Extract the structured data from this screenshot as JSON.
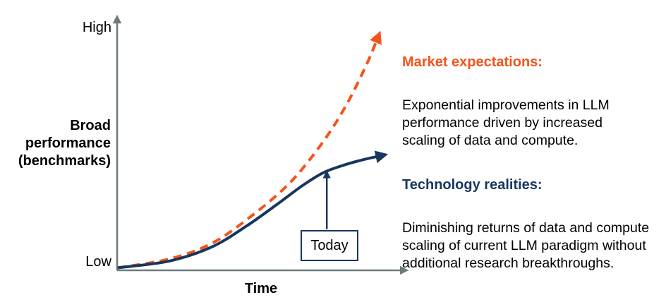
{
  "colors": {
    "market_orange": "#F4541C",
    "tech_navy": "#17375E",
    "axis_gray": "#6E7B7B",
    "text_black": "#000000"
  },
  "axes": {
    "y_high_label": "High",
    "y_low_label": "Low",
    "y_title": "Broad\nperformance\n(benchmarks)",
    "x_title": "Time"
  },
  "today": {
    "label": "Today"
  },
  "notes": {
    "market": {
      "title": "Market expectations:",
      "body": "Exponential improvements in LLM\nperformance driven by increased\nscaling of data and compute."
    },
    "tech": {
      "title": "Technology realities:",
      "body": "Diminishing returns of data and compute\nscaling of current LLM paradigm without\nadditional research breakthroughs."
    }
  },
  "chart_data": {
    "type": "line",
    "title": "",
    "xlabel": "Time",
    "ylabel": "Broad performance (benchmarks)",
    "y_tick_labels": [
      "Low",
      "High"
    ],
    "grid": false,
    "legend_position": "right-annotations",
    "axis_style": "qualitative (no numeric ticks); both axes drawn as gray arrows",
    "series": [
      {
        "name": "Market expectations",
        "style": "dashed",
        "color": "#F4541C",
        "arrow_end": true,
        "shape": "exponential growth",
        "points_frac": [
          [
            0.0,
            0.01
          ],
          [
            0.175,
            0.044
          ],
          [
            0.32,
            0.105
          ],
          [
            0.452,
            0.209
          ],
          [
            0.584,
            0.339
          ],
          [
            0.692,
            0.49
          ],
          [
            0.777,
            0.642
          ],
          [
            0.849,
            0.807
          ],
          [
            0.887,
            0.912
          ]
        ]
      },
      {
        "name": "Technology realities",
        "style": "solid",
        "color": "#17375E",
        "arrow_end": true,
        "shape": "s-curve with diminishing returns",
        "points_frac": [
          [
            0.0,
            0.01
          ],
          [
            0.175,
            0.036
          ],
          [
            0.32,
            0.091
          ],
          [
            0.44,
            0.174
          ],
          [
            0.548,
            0.262
          ],
          [
            0.632,
            0.333
          ],
          [
            0.704,
            0.383
          ],
          [
            0.777,
            0.413
          ],
          [
            0.837,
            0.432
          ],
          [
            0.9,
            0.448
          ]
        ]
      }
    ],
    "annotation": {
      "label": "Today",
      "arrow_x_frac": 0.712,
      "arrow_y_from_frac": 0.16,
      "arrow_y_to_frac": 0.375,
      "points_to_series": "Technology realities"
    }
  }
}
